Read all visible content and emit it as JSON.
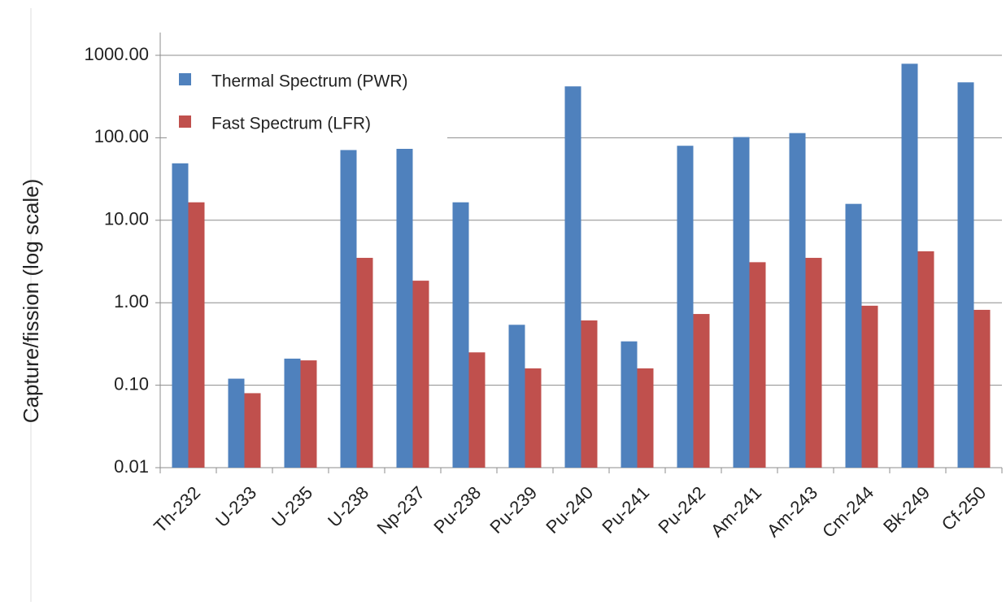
{
  "chart_data": {
    "type": "bar",
    "y_label": "Capture/fission (log scale)",
    "categories": [
      "Th-232",
      "U-233",
      "U-235",
      "U-238",
      "Np-237",
      "Pu-238",
      "Pu-239",
      "Pu-240",
      "Pu-241",
      "Pu-242",
      "Am-241",
      "Am-243",
      "Cm-244",
      "Bk-249",
      "Cf-250"
    ],
    "series": [
      {
        "name": "Thermal Spectrum (PWR)",
        "color": "#4f81bd",
        "values": [
          49,
          0.12,
          0.21,
          71,
          79,
          16.5,
          0.54,
          420,
          0.34,
          80,
          102,
          114,
          15.8,
          790,
          470
        ]
      },
      {
        "name": "Fast Spectrum (LFR)",
        "color": "#c0504d",
        "values": [
          16.5,
          0.08,
          0.2,
          3.5,
          1.85,
          0.25,
          0.16,
          0.61,
          0.16,
          0.73,
          3.1,
          3.5,
          0.92,
          4.2,
          0.82
        ]
      }
    ],
    "ylim": [
      0.01,
      1000
    ],
    "yticks": [
      {
        "value": 0.01,
        "label": "0.01"
      },
      {
        "value": 0.1,
        "label": "0.10"
      },
      {
        "value": 1,
        "label": "1.00"
      },
      {
        "value": 10,
        "label": "10.00"
      },
      {
        "value": 100,
        "label": "100.00"
      },
      {
        "value": 1000,
        "label": "1000.00"
      }
    ],
    "log_scale": true,
    "grid": true,
    "legend": "upper left"
  }
}
